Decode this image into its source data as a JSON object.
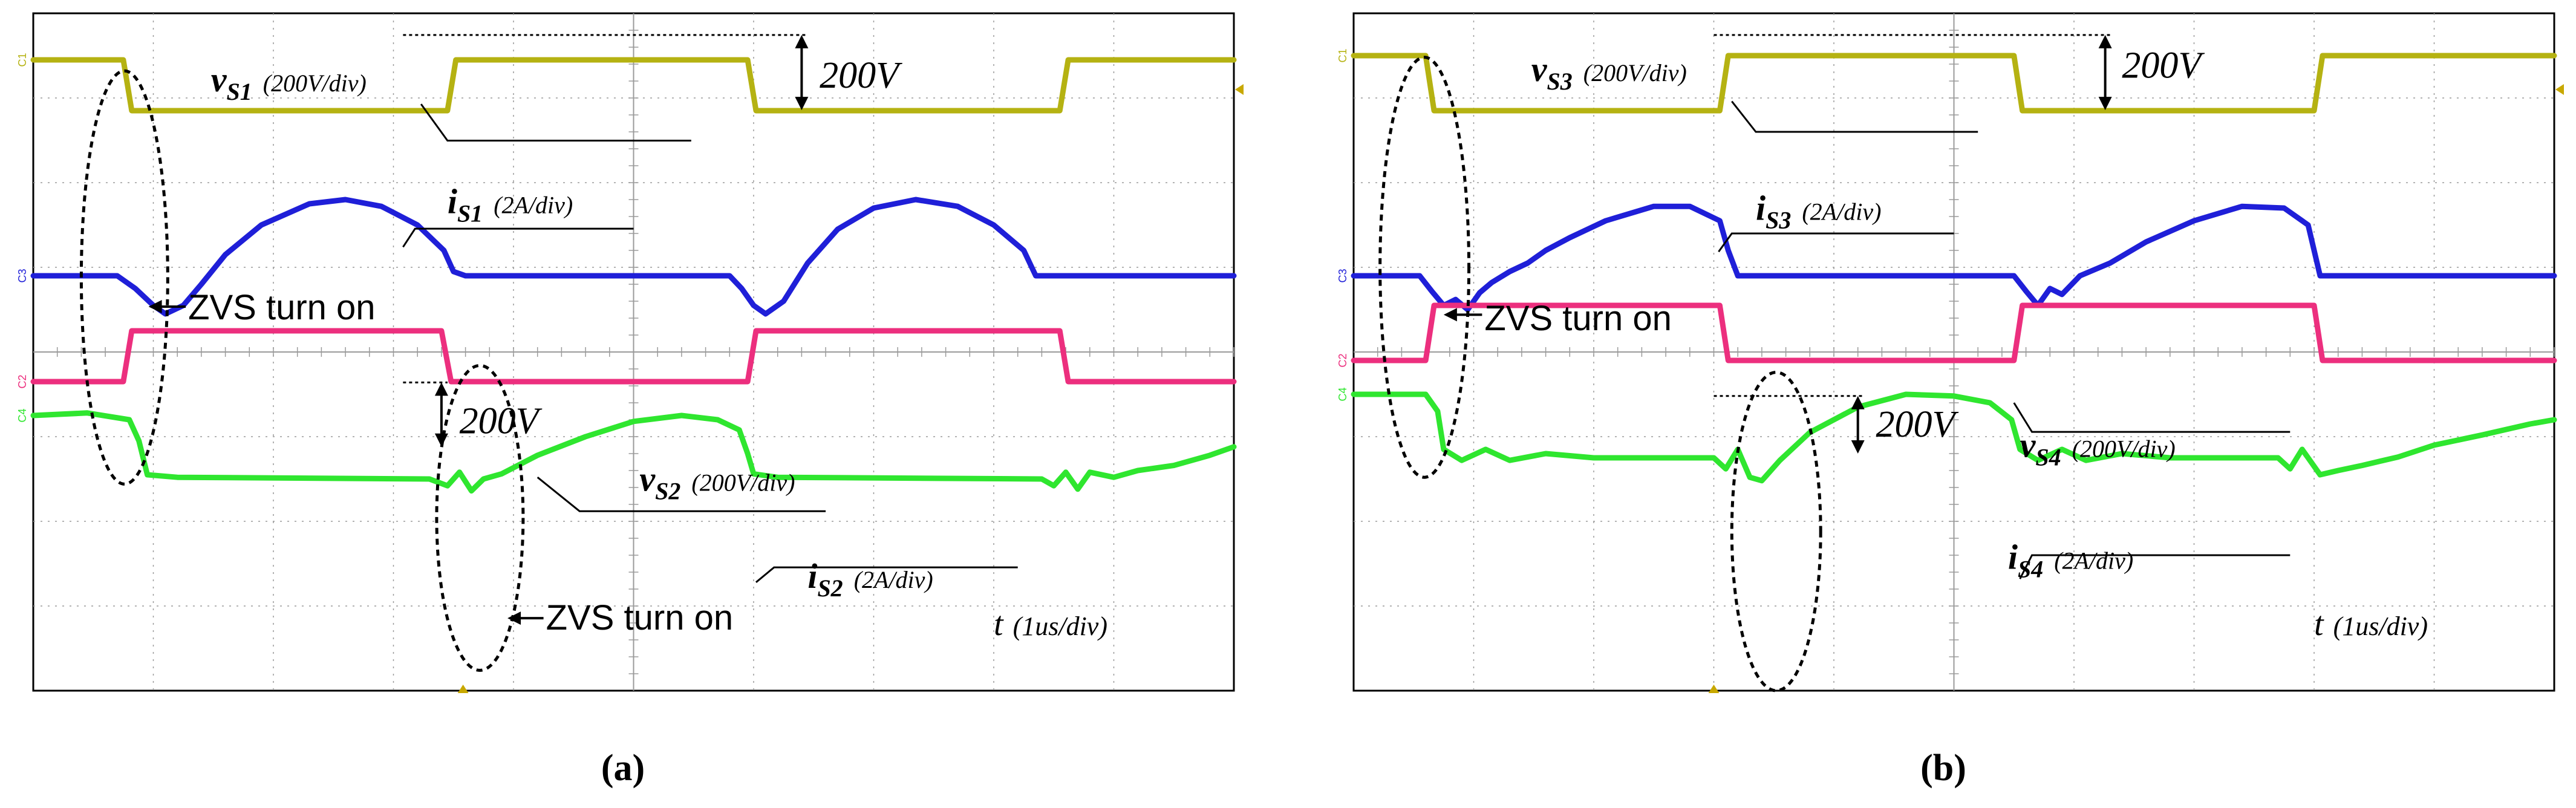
{
  "colors": {
    "ch1": "#b5b212",
    "ch3": "#1f1fd8",
    "ch2": "#ec2f7e",
    "ch4": "#2fe62f",
    "grid": "#9a9a9a",
    "frame": "#000000",
    "text": "#000000"
  },
  "chart_data": [
    {
      "type": "line",
      "subplot_label": "a",
      "caption": "(a)",
      "time_label_var": "t",
      "time_label_unit": "(1us/div)",
      "x_unit": "div",
      "y_unit": "div",
      "xlim": [
        0,
        10
      ],
      "ylim": [
        0,
        8
      ],
      "grid": true,
      "channel_markers": [
        "C1",
        "C3",
        "C2",
        "C4"
      ],
      "series": [
        {
          "name": "vS1",
          "channel": "C1",
          "color_key": "ch1",
          "points": [
            [
              0,
              7.45
            ],
            [
              0.75,
              7.45
            ],
            [
              0.82,
              6.85
            ],
            [
              3.45,
              6.85
            ],
            [
              3.52,
              7.45
            ],
            [
              5.95,
              7.45
            ],
            [
              6.02,
              6.85
            ],
            [
              8.55,
              6.85
            ],
            [
              8.62,
              7.45
            ],
            [
              10,
              7.45
            ]
          ]
        },
        {
          "name": "iS1",
          "channel": "C3",
          "color_key": "ch3",
          "points": [
            [
              0,
              4.9
            ],
            [
              0.7,
              4.9
            ],
            [
              0.85,
              4.75
            ],
            [
              1.0,
              4.55
            ],
            [
              1.1,
              4.45
            ],
            [
              1.25,
              4.55
            ],
            [
              1.4,
              4.8
            ],
            [
              1.6,
              5.15
            ],
            [
              1.9,
              5.5
            ],
            [
              2.3,
              5.75
            ],
            [
              2.6,
              5.8
            ],
            [
              2.9,
              5.72
            ],
            [
              3.2,
              5.5
            ],
            [
              3.42,
              5.2
            ],
            [
              3.5,
              4.95
            ],
            [
              3.6,
              4.9
            ],
            [
              5.8,
              4.9
            ],
            [
              5.9,
              4.75
            ],
            [
              6.0,
              4.55
            ],
            [
              6.1,
              4.45
            ],
            [
              6.25,
              4.6
            ],
            [
              6.45,
              5.05
            ],
            [
              6.7,
              5.45
            ],
            [
              7.0,
              5.7
            ],
            [
              7.35,
              5.8
            ],
            [
              7.7,
              5.72
            ],
            [
              8.0,
              5.5
            ],
            [
              8.25,
              5.2
            ],
            [
              8.35,
              4.9
            ],
            [
              10,
              4.9
            ]
          ]
        },
        {
          "name": "vS2",
          "channel": "C2",
          "color_key": "ch2",
          "points": [
            [
              0,
              3.65
            ],
            [
              0.75,
              3.65
            ],
            [
              0.82,
              4.25
            ],
            [
              3.4,
              4.25
            ],
            [
              3.48,
              3.65
            ],
            [
              5.95,
              3.65
            ],
            [
              6.02,
              4.25
            ],
            [
              8.55,
              4.25
            ],
            [
              8.62,
              3.65
            ],
            [
              10,
              3.65
            ]
          ]
        },
        {
          "name": "iS2",
          "channel": "C4",
          "color_key": "ch4",
          "points": [
            [
              0,
              3.25
            ],
            [
              0.45,
              3.28
            ],
            [
              0.8,
              3.2
            ],
            [
              0.88,
              2.95
            ],
            [
              0.95,
              2.55
            ],
            [
              1.2,
              2.52
            ],
            [
              3.3,
              2.5
            ],
            [
              3.45,
              2.42
            ],
            [
              3.55,
              2.58
            ],
            [
              3.65,
              2.36
            ],
            [
              3.75,
              2.5
            ],
            [
              3.9,
              2.56
            ],
            [
              4.2,
              2.78
            ],
            [
              4.6,
              3.0
            ],
            [
              5.0,
              3.18
            ],
            [
              5.4,
              3.25
            ],
            [
              5.7,
              3.2
            ],
            [
              5.88,
              3.08
            ],
            [
              5.95,
              2.8
            ],
            [
              6.0,
              2.56
            ],
            [
              6.2,
              2.52
            ],
            [
              8.4,
              2.5
            ],
            [
              8.5,
              2.42
            ],
            [
              8.6,
              2.58
            ],
            [
              8.7,
              2.38
            ],
            [
              8.8,
              2.58
            ],
            [
              9.0,
              2.52
            ],
            [
              9.2,
              2.6
            ],
            [
              9.5,
              2.66
            ],
            [
              9.8,
              2.78
            ],
            [
              10,
              2.88
            ]
          ]
        }
      ],
      "annotations": [
        {
          "var": "v",
          "sub": "S1",
          "scale": "(200V/div)"
        },
        {
          "var": "i",
          "sub": "S1",
          "scale": "(2A/div)"
        },
        {
          "var": "v",
          "sub": "S2",
          "scale": "(200V/div)"
        },
        {
          "var": "i",
          "sub": "S2",
          "scale": "(2A/div)"
        },
        {
          "text": "200V"
        },
        {
          "text": "200V"
        },
        {
          "text": "ZVS turn on"
        },
        {
          "text": "ZVS turn on"
        }
      ]
    },
    {
      "type": "line",
      "subplot_label": "b",
      "caption": "(b)",
      "time_label_var": "t",
      "time_label_unit": "(1us/div)",
      "x_unit": "div",
      "y_unit": "div",
      "xlim": [
        0,
        10
      ],
      "ylim": [
        0,
        8
      ],
      "grid": true,
      "channel_markers": [
        "C1",
        "C3",
        "C2",
        "C4"
      ],
      "series": [
        {
          "name": "vS3",
          "channel": "C1",
          "color_key": "ch1",
          "points": [
            [
              0,
              7.5
            ],
            [
              0.6,
              7.5
            ],
            [
              0.67,
              6.85
            ],
            [
              3.05,
              6.85
            ],
            [
              3.12,
              7.5
            ],
            [
              5.5,
              7.5
            ],
            [
              5.57,
              6.85
            ],
            [
              8.0,
              6.85
            ],
            [
              8.07,
              7.5
            ],
            [
              10,
              7.5
            ]
          ]
        },
        {
          "name": "iS3",
          "channel": "C3",
          "color_key": "ch3",
          "points": [
            [
              0,
              4.9
            ],
            [
              0.55,
              4.9
            ],
            [
              0.65,
              4.72
            ],
            [
              0.75,
              4.55
            ],
            [
              0.85,
              4.62
            ],
            [
              0.95,
              4.5
            ],
            [
              1.05,
              4.7
            ],
            [
              1.15,
              4.82
            ],
            [
              1.3,
              4.95
            ],
            [
              1.45,
              5.05
            ],
            [
              1.6,
              5.2
            ],
            [
              1.8,
              5.35
            ],
            [
              2.1,
              5.55
            ],
            [
              2.5,
              5.72
            ],
            [
              2.8,
              5.72
            ],
            [
              3.05,
              5.55
            ],
            [
              3.12,
              5.2
            ],
            [
              3.2,
              4.9
            ],
            [
              5.5,
              4.9
            ],
            [
              5.6,
              4.72
            ],
            [
              5.7,
              4.55
            ],
            [
              5.8,
              4.75
            ],
            [
              5.9,
              4.68
            ],
            [
              6.05,
              4.9
            ],
            [
              6.3,
              5.05
            ],
            [
              6.6,
              5.3
            ],
            [
              7.0,
              5.55
            ],
            [
              7.4,
              5.72
            ],
            [
              7.75,
              5.7
            ],
            [
              7.95,
              5.5
            ],
            [
              8.05,
              4.9
            ],
            [
              10,
              4.9
            ]
          ]
        },
        {
          "name": "vS4",
          "channel": "C2",
          "color_key": "ch2",
          "points": [
            [
              0,
              3.9
            ],
            [
              0.6,
              3.9
            ],
            [
              0.67,
              4.55
            ],
            [
              3.05,
              4.55
            ],
            [
              3.12,
              3.9
            ],
            [
              5.5,
              3.9
            ],
            [
              5.57,
              4.55
            ],
            [
              8.0,
              4.55
            ],
            [
              8.07,
              3.9
            ],
            [
              10,
              3.9
            ]
          ]
        },
        {
          "name": "iS4",
          "channel": "C4",
          "color_key": "ch4",
          "points": [
            [
              0,
              3.5
            ],
            [
              0.6,
              3.5
            ],
            [
              0.7,
              3.3
            ],
            [
              0.75,
              2.85
            ],
            [
              0.9,
              2.72
            ],
            [
              1.1,
              2.85
            ],
            [
              1.3,
              2.72
            ],
            [
              1.6,
              2.8
            ],
            [
              2.0,
              2.75
            ],
            [
              3.0,
              2.75
            ],
            [
              3.1,
              2.62
            ],
            [
              3.2,
              2.85
            ],
            [
              3.3,
              2.52
            ],
            [
              3.4,
              2.48
            ],
            [
              3.55,
              2.72
            ],
            [
              3.8,
              3.05
            ],
            [
              4.2,
              3.35
            ],
            [
              4.6,
              3.5
            ],
            [
              5.0,
              3.48
            ],
            [
              5.3,
              3.4
            ],
            [
              5.48,
              3.2
            ],
            [
              5.55,
              2.85
            ],
            [
              5.7,
              2.72
            ],
            [
              5.9,
              2.85
            ],
            [
              6.1,
              2.72
            ],
            [
              6.4,
              2.8
            ],
            [
              6.8,
              2.75
            ],
            [
              7.7,
              2.75
            ],
            [
              7.8,
              2.62
            ],
            [
              7.9,
              2.85
            ],
            [
              8.05,
              2.55
            ],
            [
              8.2,
              2.6
            ],
            [
              8.4,
              2.66
            ],
            [
              8.7,
              2.76
            ],
            [
              9.0,
              2.9
            ],
            [
              9.4,
              3.02
            ],
            [
              9.8,
              3.15
            ],
            [
              10,
              3.2
            ]
          ]
        }
      ],
      "annotations": [
        {
          "var": "v",
          "sub": "S3",
          "scale": "(200V/div)"
        },
        {
          "var": "i",
          "sub": "S3",
          "scale": "(2A/div)"
        },
        {
          "var": "v",
          "sub": "S4",
          "scale": "(200V/div)"
        },
        {
          "var": "i",
          "sub": "S4",
          "scale": "(2A/div)"
        },
        {
          "text": "200V"
        },
        {
          "text": "200V"
        },
        {
          "text": "ZVS turn on"
        }
      ]
    }
  ]
}
